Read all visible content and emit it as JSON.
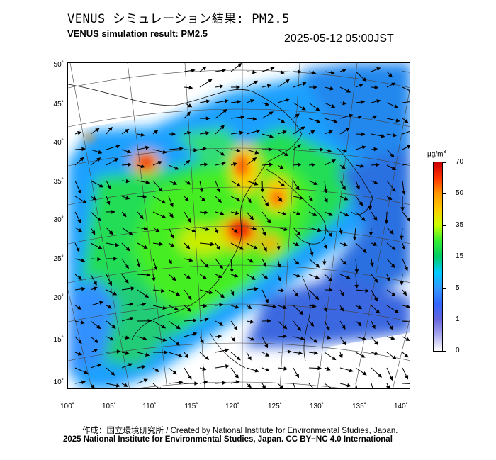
{
  "header": {
    "title_jp": "VENUS シミュレーション結果: PM2.5",
    "title_en": "VENUS simulation result: PM2.5",
    "timestamp": "2025-05-12 05:00JST"
  },
  "map": {
    "lat_labels": [
      "50˚",
      "45˚",
      "40˚",
      "35˚",
      "30˚",
      "25˚",
      "20˚",
      "15˚",
      "10˚"
    ],
    "lon_labels": [
      "100˚",
      "105˚",
      "110˚",
      "115˚",
      "120˚",
      "125˚",
      "130˚",
      "135˚",
      "140˚"
    ],
    "lat_values": [
      50,
      45,
      40,
      35,
      30,
      25,
      20,
      15,
      10
    ],
    "lon_values": [
      100,
      105,
      110,
      115,
      120,
      125,
      130,
      135,
      140
    ],
    "variable": "PM2.5",
    "colors": {
      "land_low": "#1e90ff",
      "mid": "#00ff00",
      "high": "#ff8c00",
      "max": "#dd0000",
      "ocean_low": "#4169e1",
      "none": "#ffffff"
    }
  },
  "colorbar": {
    "unit": "μg/m",
    "unit_sup": "3",
    "ticks": [
      "70",
      "50",
      "35",
      "15",
      "5",
      "1",
      "0"
    ],
    "tick_values": [
      70,
      50,
      35,
      15,
      5,
      1,
      0
    ],
    "stops": [
      "#cc0000",
      "#ff3300",
      "#ff9900",
      "#ffcc00",
      "#ccff00",
      "#33ee33",
      "#00cc66",
      "#00ccff",
      "#3399ff",
      "#3366ff",
      "#6666dd",
      "#aaaaee",
      "#ffffff"
    ]
  },
  "footer": {
    "credit_line1": "作成：国立環境研究所 / Created by National Institute for Environmental Studies, Japan.",
    "credit_line2": "2025 National Institute for Environmental Studies, Japan. CC BY−NC 4.0 International"
  }
}
